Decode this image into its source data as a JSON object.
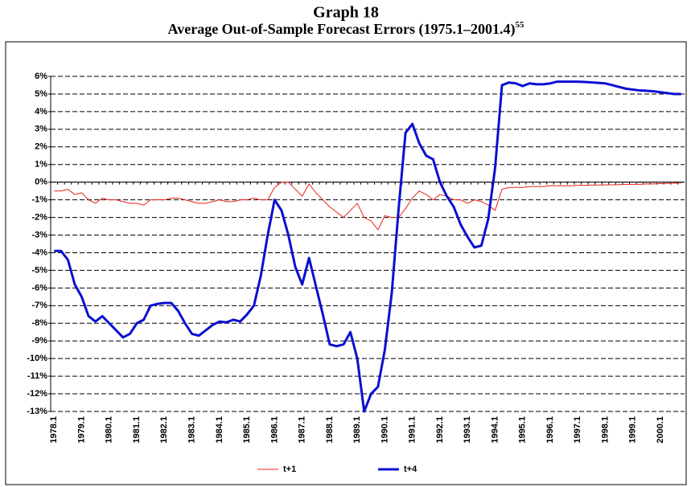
{
  "chart_data": {
    "type": "line",
    "title": "Graph 18",
    "subtitle": "Average Out-of-Sample Forecast Errors (1975.1–2001.4)",
    "subtitle_superscript": "55",
    "categories": [
      "1978.1",
      null,
      null,
      null,
      "1979.1",
      null,
      null,
      null,
      "1980.1",
      null,
      null,
      null,
      "1981.1",
      null,
      null,
      null,
      "1982.1",
      null,
      null,
      null,
      "1983.1",
      null,
      null,
      null,
      "1984.1",
      null,
      null,
      null,
      "1985.1",
      null,
      null,
      null,
      "1986.1",
      null,
      null,
      null,
      "1987.1",
      null,
      null,
      null,
      "1988.1",
      null,
      null,
      null,
      "1989.1",
      null,
      null,
      null,
      "1990.1",
      null,
      null,
      null,
      "1991.1",
      null,
      null,
      null,
      "1992.1",
      null,
      null,
      null,
      "1993.1",
      null,
      null,
      null,
      "1994.1",
      null,
      null,
      null,
      "1995.1",
      null,
      null,
      null,
      "1996.1",
      null,
      null,
      null,
      "1997.1",
      null,
      null,
      null,
      "1998.1",
      null,
      null,
      null,
      "1999.1",
      null,
      null,
      null,
      "2000.1",
      null,
      null,
      null
    ],
    "series": [
      {
        "name": "t+1",
        "color": "#e8241c",
        "width": 1,
        "values": [
          -0.5,
          -0.5,
          -0.4,
          -0.7,
          -0.6,
          -1.0,
          -1.2,
          -0.9,
          -1.0,
          -1.0,
          -1.1,
          -1.2,
          -1.2,
          -1.3,
          -1.0,
          -1.0,
          -1.0,
          -0.9,
          -0.9,
          -1.0,
          -1.1,
          -1.2,
          -1.2,
          -1.1,
          -1.0,
          -1.1,
          -1.1,
          -1.0,
          -1.0,
          -0.9,
          -1.0,
          -1.0,
          -0.3,
          0.0,
          0.0,
          -0.4,
          -0.8,
          -0.1,
          -0.6,
          -1.0,
          -1.4,
          -1.7,
          -2.0,
          -1.6,
          -1.2,
          -2.0,
          -2.2,
          -2.7,
          -1.9,
          -2.0,
          -2.0,
          -1.5,
          -0.9,
          -0.5,
          -0.7,
          -1.0,
          -0.7,
          -0.8,
          -1.0,
          -1.0,
          -1.2,
          -1.0,
          -1.1,
          -1.3,
          -1.6,
          -0.4,
          -0.3,
          -0.3,
          -0.3,
          -0.25,
          -0.25,
          -0.25,
          -0.2,
          -0.2,
          -0.2,
          -0.2,
          -0.18,
          -0.18,
          -0.16,
          -0.16,
          -0.15,
          -0.15,
          -0.14,
          -0.13,
          -0.12,
          -0.12,
          -0.1,
          -0.1,
          -0.08,
          -0.07,
          -0.06,
          -0.05
        ]
      },
      {
        "name": "t+4",
        "color": "#0a10d0",
        "width": 3,
        "values": [
          -3.9,
          -3.9,
          -4.4,
          -5.8,
          -6.5,
          -7.6,
          -7.9,
          -7.6,
          -8.0,
          -8.4,
          -8.8,
          -8.6,
          -8.0,
          -7.8,
          -7.0,
          -6.9,
          -6.85,
          -6.85,
          -7.3,
          -8.0,
          -8.6,
          -8.7,
          -8.4,
          -8.1,
          -7.9,
          -7.95,
          -7.8,
          -7.9,
          -7.5,
          -7.0,
          -5.3,
          -3.0,
          -1.0,
          -1.6,
          -3.0,
          -4.8,
          -5.8,
          -4.3,
          -5.9,
          -7.5,
          -9.2,
          -9.3,
          -9.2,
          -8.5,
          -10.0,
          -13.0,
          -12.0,
          -11.6,
          -9.5,
          -6.3,
          -1.5,
          2.8,
          3.3,
          2.2,
          1.5,
          1.3,
          0.0,
          -0.8,
          -1.4,
          -2.4,
          -3.1,
          -3.7,
          -3.6,
          -2.1,
          0.8,
          5.5,
          5.65,
          5.6,
          5.45,
          5.6,
          5.55,
          5.55,
          5.6,
          5.7,
          5.7,
          5.7,
          5.7,
          5.68,
          5.66,
          5.63,
          5.6,
          5.5,
          5.4,
          5.3,
          5.25,
          5.2,
          5.18,
          5.15,
          5.1,
          5.05,
          5.0,
          5.0
        ]
      }
    ],
    "ylim": [
      -13,
      6
    ],
    "yticks": [
      {
        "value": -13,
        "label": "-13%"
      },
      {
        "value": -12,
        "label": "-12%"
      },
      {
        "value": -11,
        "label": "-11%"
      },
      {
        "value": -10,
        "label": "-10%"
      },
      {
        "value": -9,
        "label": "-9%"
      },
      {
        "value": -8,
        "label": "-8%"
      },
      {
        "value": -7,
        "label": "-7%"
      },
      {
        "value": -6,
        "label": "-6%"
      },
      {
        "value": -5,
        "label": "-5%"
      },
      {
        "value": -4,
        "label": "-4%"
      },
      {
        "value": -3,
        "label": "-3%"
      },
      {
        "value": -2,
        "label": "-2%"
      },
      {
        "value": -1,
        "label": "-1%"
      },
      {
        "value": 0,
        "label": "0%"
      },
      {
        "value": 1,
        "label": "1%"
      },
      {
        "value": 2,
        "label": "2%"
      },
      {
        "value": 3,
        "label": "3%"
      },
      {
        "value": 4,
        "label": "4%"
      },
      {
        "value": 5,
        "label": "5%"
      },
      {
        "value": 6,
        "label": "6%"
      }
    ],
    "grid": true,
    "legend": "bottom"
  }
}
